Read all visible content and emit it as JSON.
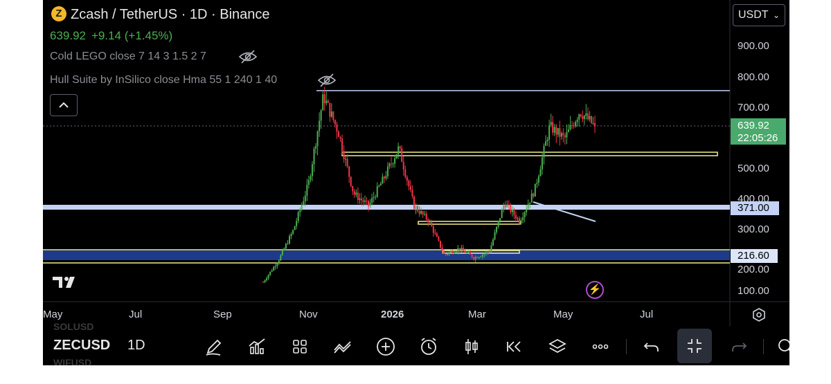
{
  "header": {
    "symbol_badge": "Z",
    "title": "Zcash / TetherUS · 1D · Binance",
    "last_price": "639.92",
    "change": "+9.14 (+1.45%)",
    "indicator_1": "Cold LEGO close 7 14 3 1.5 2 7",
    "indicator_2": "Hull Suite by InSilico close Hma 55 1 240 1 40"
  },
  "currency_select": {
    "label": "USDT"
  },
  "price_axis": {
    "ticks": [
      "900.00",
      "800.00",
      "700.00",
      "500.00",
      "400.00",
      "300.00",
      "200.00",
      "100.00"
    ],
    "last_price_tag": {
      "price": "639.92",
      "countdown": "22:05:26"
    },
    "level_tags": [
      "371.00",
      "216.60"
    ]
  },
  "time_axis": {
    "labels": [
      "May",
      "Jul",
      "Sep",
      "Nov",
      "2026",
      "Mar",
      "May",
      "Jul"
    ]
  },
  "toolbar": {
    "symbol": "ZECUSD",
    "interval": "1D",
    "ghost_above": "SOLUSD",
    "ghost_below": "WIFUSD",
    "tools": [
      "drawing-tool",
      "indicators",
      "layout-grid",
      "compare",
      "add",
      "alert",
      "bar-style",
      "replay",
      "layers",
      "more",
      "undo",
      "fullscreen-exit",
      "redo",
      "search"
    ]
  },
  "colors": {
    "up": "#4caf50",
    "down": "#f23645",
    "level_line": "#c3d2f5",
    "zone": "#f2f089",
    "support_band": "#1e3a8a",
    "price_tag": "#4aa96c"
  },
  "chart_data": {
    "type": "candlestick",
    "x_labels": [
      "May",
      "Jul",
      "Sep",
      "Nov",
      "2026",
      "Mar",
      "May",
      "Jul"
    ],
    "y_ticks": [
      100,
      200,
      300,
      400,
      500,
      600,
      700,
      800,
      900
    ],
    "last_price": 639.92,
    "change": 9.14,
    "change_pct": 1.45,
    "horizontal_levels": [
      {
        "price": 371.0,
        "label": "371.00"
      },
      {
        "price": 216.6,
        "label": "216.60"
      },
      {
        "price": 755.0,
        "label": ""
      }
    ],
    "zones": [
      {
        "from": "Nov",
        "to": "Jul",
        "low": 545,
        "high": 558
      },
      {
        "from": "2026",
        "to": "Mar",
        "low": 320,
        "high": 330
      },
      {
        "from": "Mar",
        "to": "May",
        "low": 220,
        "high": 235
      }
    ],
    "trendline": {
      "from": [
        "Apr",
        395
      ],
      "to": [
        "May",
        325
      ]
    },
    "series_path_approx": [
      {
        "x": "Sep",
        "close": 130
      },
      {
        "x": "Sep",
        "close": 200
      },
      {
        "x": "Oct",
        "close": 300
      },
      {
        "x": "Oct",
        "close": 450
      },
      {
        "x": "Nov",
        "close": 740
      },
      {
        "x": "Nov",
        "close": 620
      },
      {
        "x": "Dec",
        "close": 420
      },
      {
        "x": "Dec",
        "close": 380
      },
      {
        "x": "Dec",
        "close": 470
      },
      {
        "x": "2026",
        "close": 570
      },
      {
        "x": "Jan",
        "close": 380
      },
      {
        "x": "Feb",
        "close": 330
      },
      {
        "x": "Feb",
        "close": 220
      },
      {
        "x": "Mar",
        "close": 240
      },
      {
        "x": "Mar",
        "close": 210
      },
      {
        "x": "Apr",
        "close": 230
      },
      {
        "x": "Apr",
        "close": 390
      },
      {
        "x": "May",
        "close": 330
      },
      {
        "x": "May",
        "close": 430
      },
      {
        "x": "May",
        "close": 640
      },
      {
        "x": "May",
        "close": 600
      },
      {
        "x": "May",
        "close": 690
      },
      {
        "x": "May",
        "close": 639.92
      }
    ]
  }
}
